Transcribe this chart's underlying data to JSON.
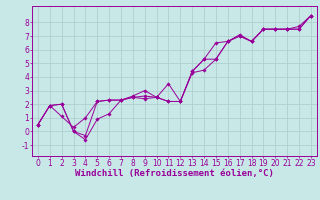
{
  "background_color": "#c8e8e8",
  "grid_color": "#b0d0d0",
  "line_color": "#990099",
  "marker_color": "#990099",
  "xlabel": "Windchill (Refroidissement éolien,°C)",
  "xlabel_fontsize": 6.5,
  "tick_fontsize": 5.5,
  "xlim": [
    -0.5,
    23.5
  ],
  "ylim": [
    -1.8,
    9.2
  ],
  "yticks": [
    -1,
    0,
    1,
    2,
    3,
    4,
    5,
    6,
    7,
    8
  ],
  "xticks": [
    0,
    1,
    2,
    3,
    4,
    5,
    6,
    7,
    8,
    9,
    10,
    11,
    12,
    13,
    14,
    15,
    16,
    17,
    18,
    19,
    20,
    21,
    22,
    23
  ],
  "x": [
    0,
    1,
    2,
    3,
    4,
    5,
    6,
    7,
    8,
    9,
    10,
    11,
    12,
    13,
    14,
    15,
    16,
    17,
    18,
    19,
    20,
    21,
    22,
    23
  ],
  "series": [
    [
      0.5,
      1.9,
      2.0,
      0.0,
      -0.3,
      2.2,
      2.3,
      2.3,
      2.5,
      2.4,
      2.5,
      3.5,
      2.2,
      4.4,
      5.3,
      6.5,
      6.6,
      7.0,
      6.6,
      7.5,
      7.5,
      7.5,
      7.7,
      8.5
    ],
    [
      0.5,
      1.9,
      2.0,
      0.0,
      -0.6,
      0.9,
      1.3,
      2.3,
      2.5,
      2.6,
      2.5,
      2.2,
      2.2,
      4.4,
      5.3,
      5.3,
      6.6,
      7.1,
      6.6,
      7.5,
      7.5,
      7.5,
      7.5,
      8.5
    ],
    [
      0.5,
      1.9,
      1.1,
      0.3,
      1.0,
      2.2,
      2.3,
      2.3,
      2.6,
      3.0,
      2.5,
      2.2,
      2.2,
      4.3,
      4.5,
      5.3,
      6.6,
      7.0,
      6.6,
      7.5,
      7.5,
      7.5,
      7.5,
      8.5
    ]
  ]
}
